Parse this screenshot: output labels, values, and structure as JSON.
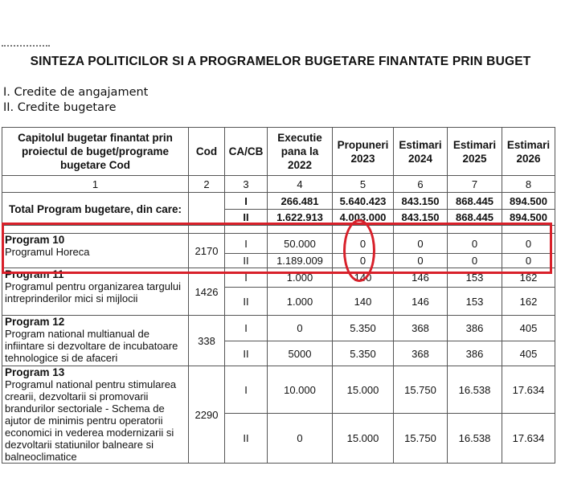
{
  "title": "SINTEZA POLITICILOR SI A PROGRAMELOR BUGETARE FINANTATE PRIN BUGET",
  "legend": [
    "I. Credite de angajament",
    "II. Credite bugetare"
  ],
  "headers": [
    "Capitolul bugetar finantat prin proiectul de buget/programe bugetare Cod",
    "Cod",
    "CA/CB",
    "Executie pana la 2022",
    "Propuneri 2023",
    "Estimari 2024",
    "Estimari 2025",
    "Estimari 2026"
  ],
  "index_row": [
    "1",
    "2",
    "3",
    "4",
    "5",
    "6",
    "7",
    "8"
  ],
  "total": {
    "label": "Total Program bugetare, din care:",
    "I": [
      "I",
      "266.481",
      "5.640.423",
      "843.150",
      "868.445",
      "894.500"
    ],
    "II": [
      "II",
      "1.622.913",
      "4.003.000",
      "843.150",
      "868.445",
      "894.500"
    ]
  },
  "programs": [
    {
      "name": "Program 10",
      "desc": "Programul Horeca",
      "cod": "2170",
      "I": [
        "I",
        "50.000",
        "0",
        "0",
        "0",
        "0"
      ],
      "II": [
        "II",
        "1.189.009",
        "0",
        "0",
        "0",
        "0"
      ]
    },
    {
      "name": "Program 11",
      "desc": "Programul pentru organizarea targului intreprinderilor mici si mijlocii",
      "cod": "1426",
      "I": [
        "I",
        "1.000",
        "140",
        "146",
        "153",
        "162"
      ],
      "II": [
        "II",
        "1.000",
        "140",
        "146",
        "153",
        "162"
      ]
    },
    {
      "name": "Program 12",
      "desc": "Program national multianual de infiintare si dezvoltare de incubatoare tehnologice si de afaceri",
      "cod": "338",
      "I": [
        "I",
        "0",
        "5.350",
        "368",
        "386",
        "405"
      ],
      "II": [
        "II",
        "5000",
        "5.350",
        "368",
        "386",
        "405"
      ]
    },
    {
      "name": "Program 13",
      "desc": "Programul national pentru stimularea crearii, dezvoltarii si promovarii brandurilor sectoriale - Schema de ajutor de minimis pentru operatorii economici in vederea modernizarii si dezvoltarii statiunilor balneare si balneoclimatice",
      "cod": "2290",
      "I": [
        "I",
        "10.000",
        "15.000",
        "15.750",
        "16.538",
        "17.634"
      ],
      "II": [
        "II",
        "0",
        "15.000",
        "15.750",
        "16.538",
        "17.634"
      ]
    }
  ],
  "highlight_color": "#d8202a"
}
